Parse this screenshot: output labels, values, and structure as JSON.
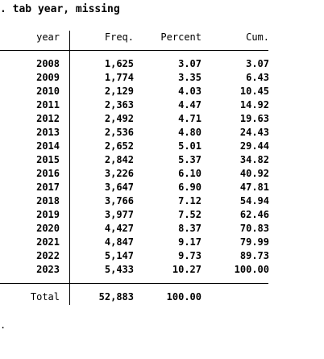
{
  "command": ". tab year, missing",
  "table": {
    "headers": {
      "label": "year",
      "freq": "Freq.",
      "percent": "Percent",
      "cum": "Cum."
    },
    "rows": [
      {
        "year": "2008",
        "freq": "1,625",
        "percent": "3.07",
        "cum": "3.07"
      },
      {
        "year": "2009",
        "freq": "1,774",
        "percent": "3.35",
        "cum": "6.43"
      },
      {
        "year": "2010",
        "freq": "2,129",
        "percent": "4.03",
        "cum": "10.45"
      },
      {
        "year": "2011",
        "freq": "2,363",
        "percent": "4.47",
        "cum": "14.92"
      },
      {
        "year": "2012",
        "freq": "2,492",
        "percent": "4.71",
        "cum": "19.63"
      },
      {
        "year": "2013",
        "freq": "2,536",
        "percent": "4.80",
        "cum": "24.43"
      },
      {
        "year": "2014",
        "freq": "2,652",
        "percent": "5.01",
        "cum": "29.44"
      },
      {
        "year": "2015",
        "freq": "2,842",
        "percent": "5.37",
        "cum": "34.82"
      },
      {
        "year": "2016",
        "freq": "3,226",
        "percent": "6.10",
        "cum": "40.92"
      },
      {
        "year": "2017",
        "freq": "3,647",
        "percent": "6.90",
        "cum": "47.81"
      },
      {
        "year": "2018",
        "freq": "3,766",
        "percent": "7.12",
        "cum": "54.94"
      },
      {
        "year": "2019",
        "freq": "3,977",
        "percent": "7.52",
        "cum": "62.46"
      },
      {
        "year": "2020",
        "freq": "4,427",
        "percent": "8.37",
        "cum": "70.83"
      },
      {
        "year": "2021",
        "freq": "4,847",
        "percent": "9.17",
        "cum": "79.99"
      },
      {
        "year": "2022",
        "freq": "5,147",
        "percent": "9.73",
        "cum": "89.73"
      },
      {
        "year": "2023",
        "freq": "5,433",
        "percent": "10.27",
        "cum": "100.00"
      }
    ],
    "total": {
      "label": "Total",
      "freq": "52,883",
      "percent": "100.00"
    }
  },
  "prompt_marker": "."
}
